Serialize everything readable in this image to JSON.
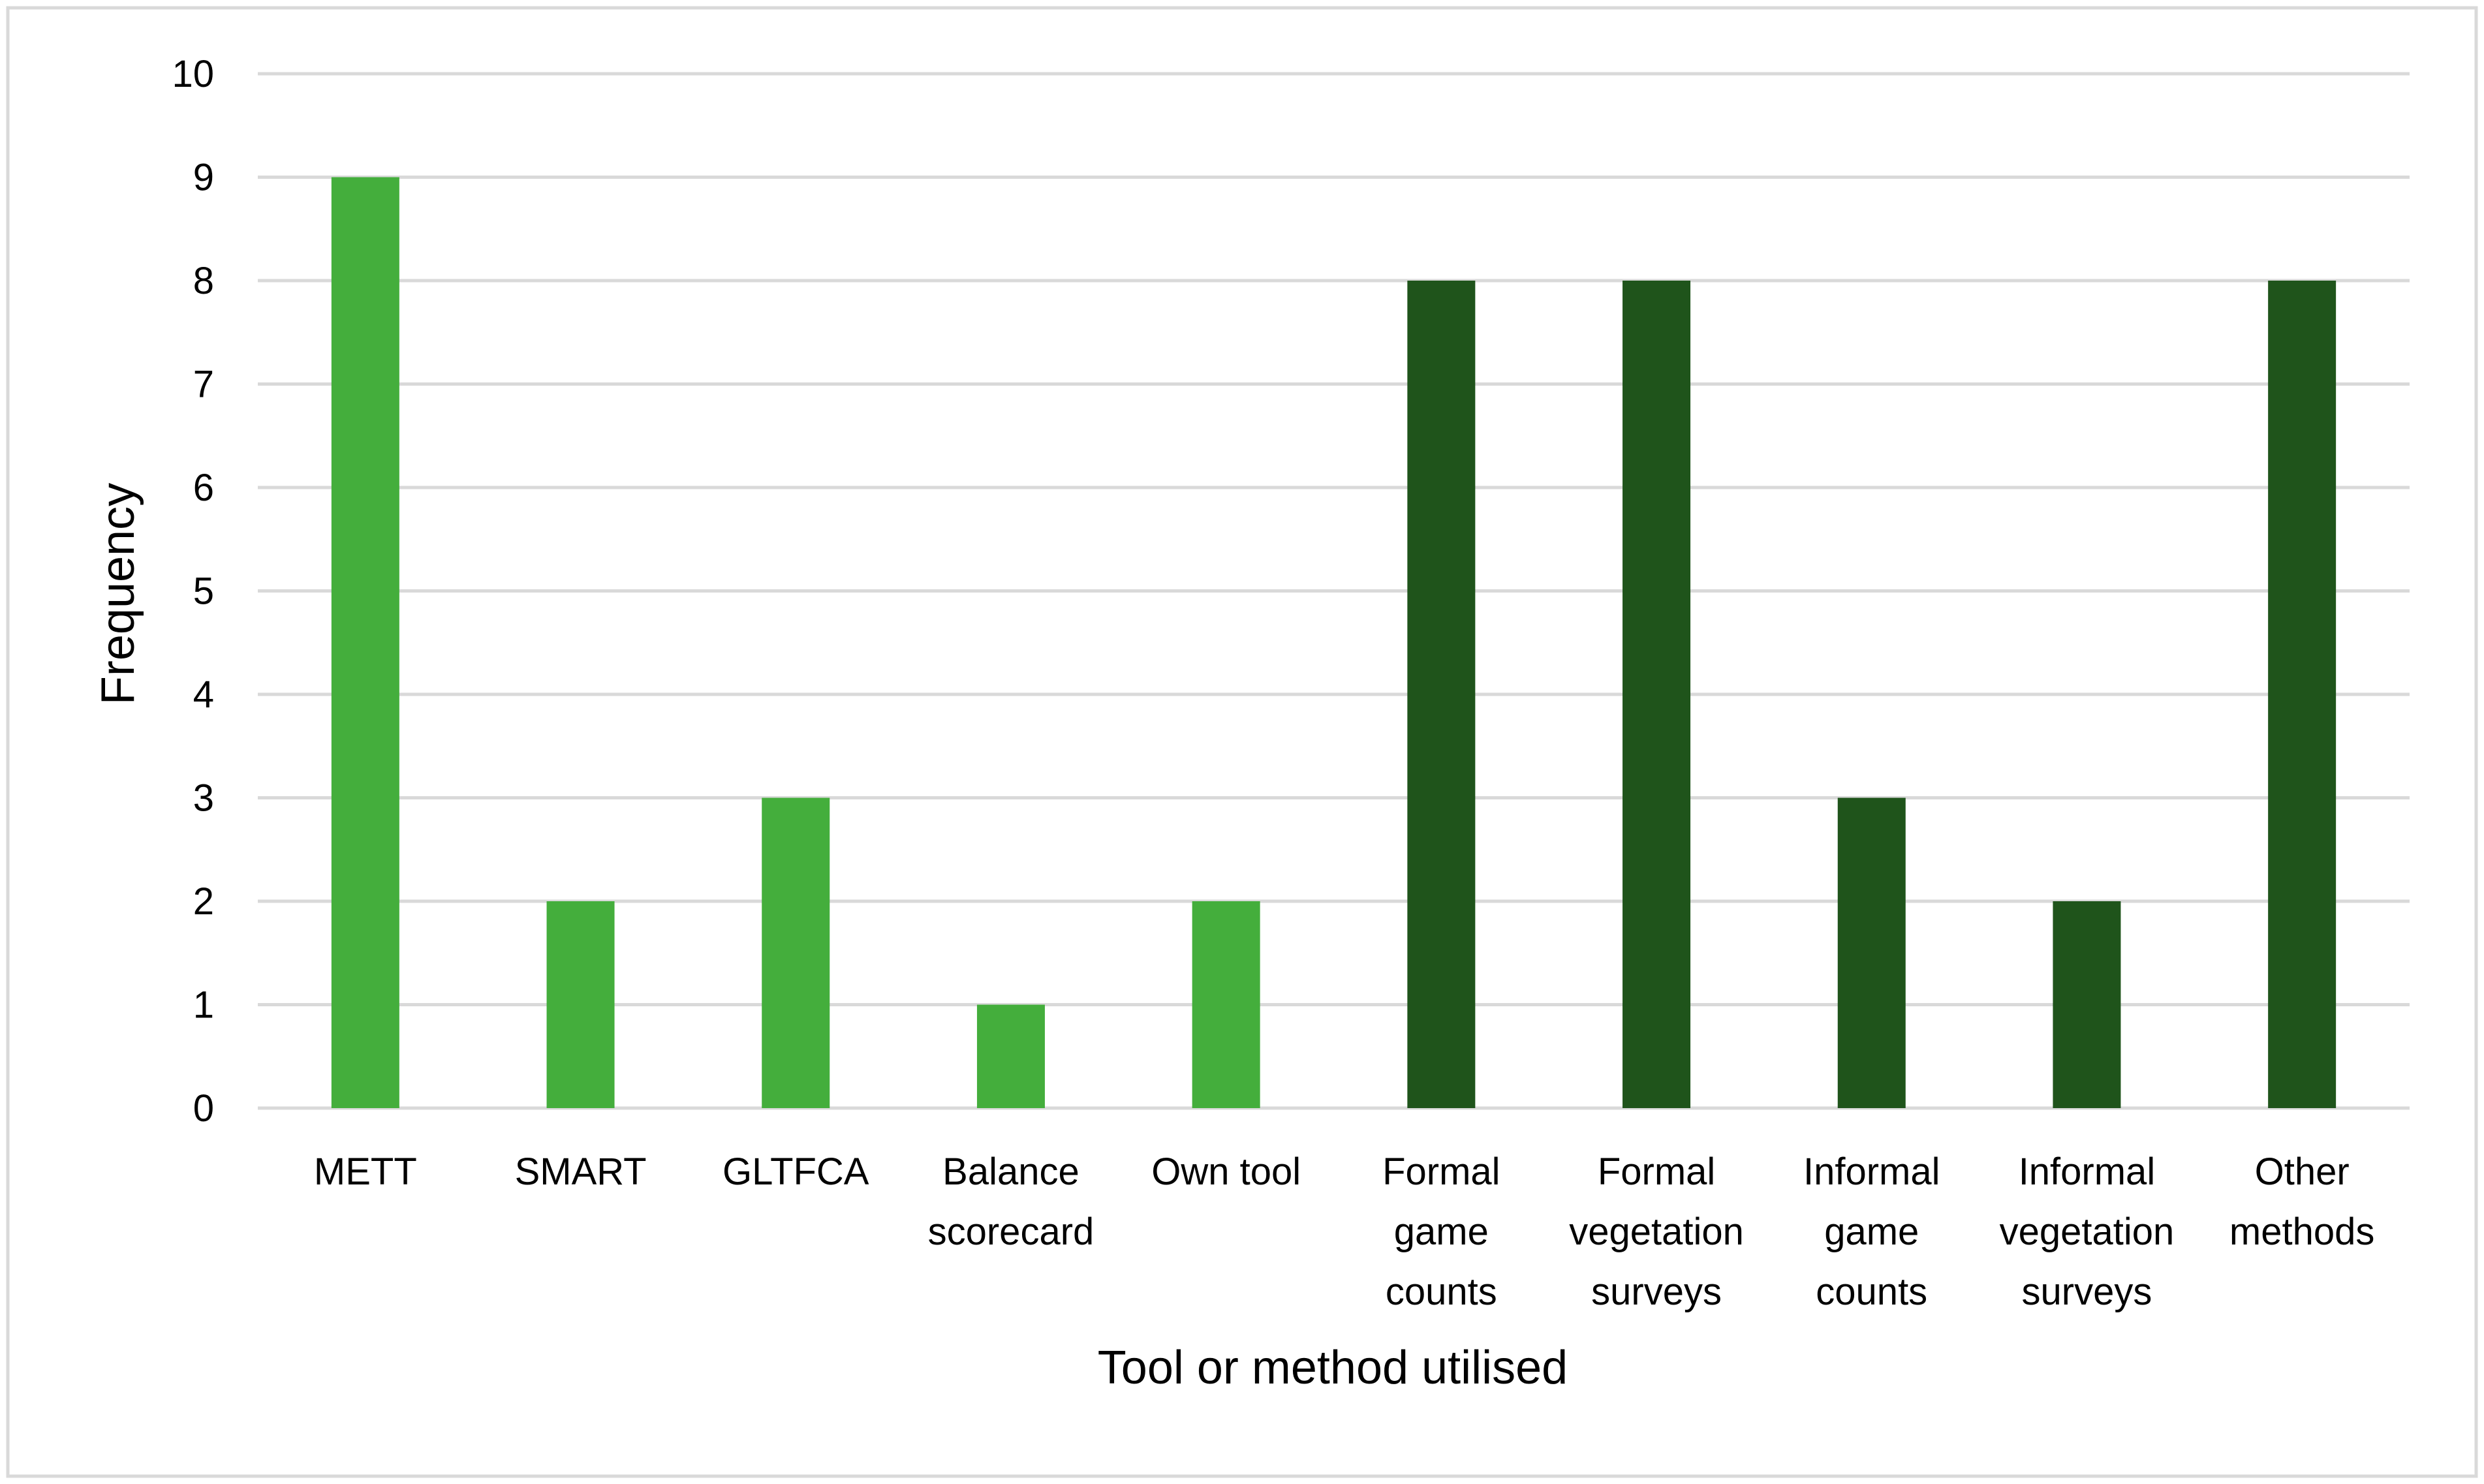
{
  "chart_data": {
    "type": "bar",
    "title": "",
    "xlabel": "Tool or method utilised",
    "ylabel": "Frequency",
    "ylim": [
      0,
      10
    ],
    "yticks": [
      0,
      1,
      2,
      3,
      4,
      5,
      6,
      7,
      8,
      9,
      10
    ],
    "grid": true,
    "categories": [
      [
        "METT"
      ],
      [
        "SMART"
      ],
      [
        "GLTFCA"
      ],
      [
        "Balance",
        "scorecard"
      ],
      [
        "Own tool"
      ],
      [
        "Formal",
        "game",
        "counts"
      ],
      [
        "Formal",
        "vegetation",
        "surveys"
      ],
      [
        "Informal",
        "game",
        "counts"
      ],
      [
        "Informal",
        "vegetation",
        "surveys"
      ],
      [
        "Other",
        "methods"
      ]
    ],
    "values": [
      9,
      2,
      3,
      1,
      2,
      8,
      8,
      3,
      2,
      8
    ],
    "groups": [
      "tool",
      "tool",
      "tool",
      "tool",
      "tool",
      "method",
      "method",
      "method",
      "method",
      "method"
    ],
    "colors": {
      "tool": "#44ae3c",
      "method": "#1f541b",
      "grid": "#d9d9d9",
      "frame": "#d9d9d9"
    }
  }
}
